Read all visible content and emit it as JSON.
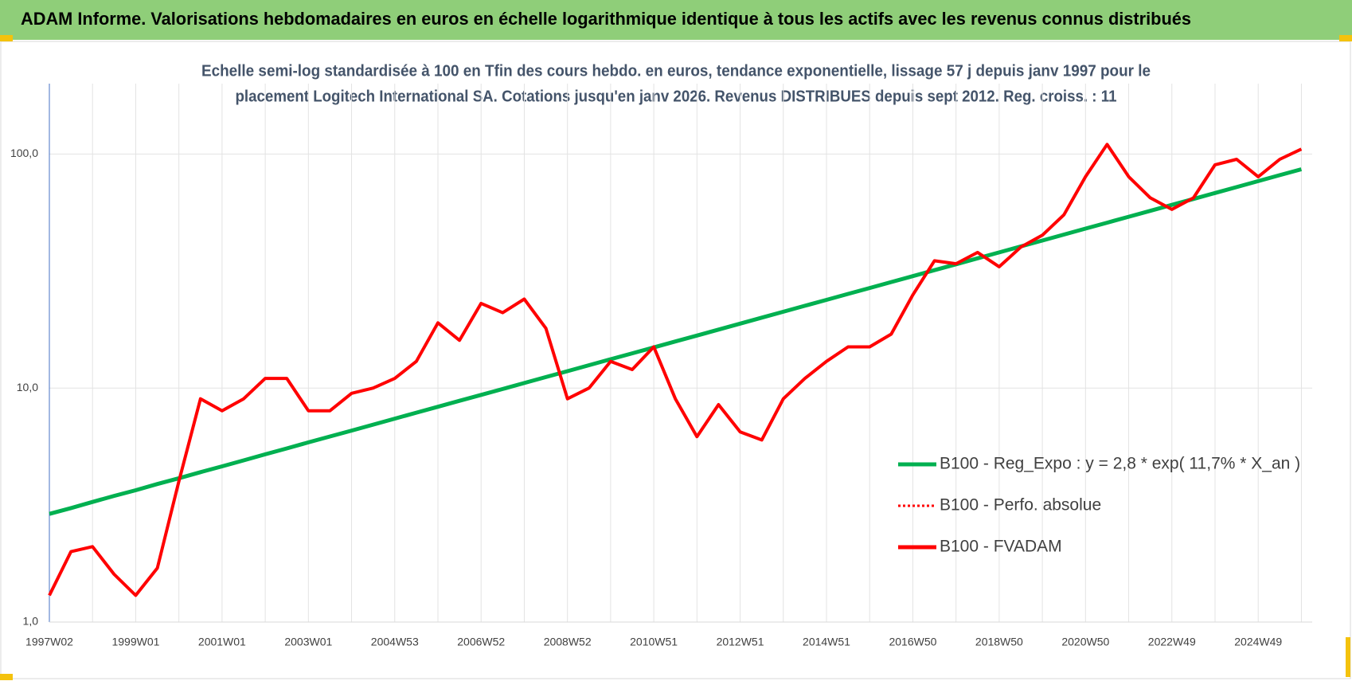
{
  "header": {
    "title": "ADAM Informe. Valorisations hebdomadaires en euros en échelle logarithmique identique à tous les actifs avec les revenus connus distribués"
  },
  "chart_data": {
    "type": "line",
    "title": [
      "Echelle semi-log standardisée à 100 en Tfin des cours hebdo. en euros, tendance exponentielle, lissage 57 j depuis janv 1997 pour le",
      "placement Logitech International SA. Cotations jusqu'en janv 2026. Revenus DISTRIBUES depuis sept 2012. Reg. croiss. : 11"
    ],
    "categories": [
      "1997W02",
      null,
      null,
      null,
      "1999W01",
      null,
      null,
      null,
      "2001W01",
      null,
      null,
      null,
      "2003W01",
      null,
      null,
      null,
      "2004W53",
      null,
      null,
      null,
      "2006W52",
      null,
      null,
      null,
      "2008W52",
      null,
      null,
      null,
      "2010W51",
      null,
      null,
      null,
      "2012W51",
      null,
      null,
      null,
      "2014W51",
      null,
      null,
      null,
      "2016W50",
      null,
      null,
      null,
      "2018W50",
      null,
      null,
      null,
      "2020W50",
      null,
      null,
      null,
      "2022W49",
      null,
      null,
      null,
      "2024W49",
      null,
      null
    ],
    "series": [
      {
        "name": "B100 - Reg_Expo : y = 2,8 * exp( 11,7% *  X_an )",
        "color": "#00b050",
        "dash": "solid",
        "values": [
          2.9,
          3.07,
          3.26,
          3.46,
          3.66,
          3.89,
          4.12,
          4.37,
          4.63,
          4.91,
          5.21,
          5.52,
          5.86,
          6.21,
          6.58,
          6.98,
          7.4,
          7.85,
          8.32,
          8.82,
          9.35,
          9.91,
          10.51,
          11.14,
          11.81,
          12.52,
          13.28,
          14.08,
          14.92,
          15.82,
          16.77,
          17.78,
          18.85,
          19.99,
          21.19,
          22.47,
          23.82,
          25.25,
          26.77,
          28.38,
          30.09,
          31.9,
          33.82,
          35.85,
          38.01,
          40.3,
          42.72,
          45.29,
          48.02,
          50.91,
          53.97,
          57.22,
          60.66,
          64.31,
          68.18,
          72.28,
          76.63,
          81.24,
          86.13
        ]
      },
      {
        "name": "B100 - Perfo. absolue",
        "color": "#ff0000",
        "dash": "dotted",
        "values": [
          null,
          null,
          null,
          null,
          null,
          null,
          null,
          null,
          null,
          null,
          null,
          null,
          null,
          null,
          null,
          null,
          null,
          null,
          null,
          null,
          null,
          null,
          null,
          null,
          null,
          null,
          null,
          null,
          null,
          null,
          null,
          null,
          null,
          null,
          null,
          null,
          null,
          null,
          null,
          null,
          null,
          null,
          null,
          null,
          null,
          null,
          null,
          null,
          null,
          null,
          null,
          null,
          null,
          null,
          null,
          null,
          null,
          null,
          null
        ]
      },
      {
        "name": "B100 - FVADAM",
        "color": "#ff0000",
        "dash": "solid",
        "values": [
          1.3,
          2.0,
          2.1,
          1.6,
          1.3,
          1.7,
          4.0,
          9.0,
          8.0,
          9.0,
          11,
          11,
          8,
          8,
          9.5,
          10,
          11,
          13,
          19,
          16,
          23,
          21,
          24,
          18,
          9,
          10,
          13,
          12,
          15,
          9,
          6.2,
          8.5,
          6.5,
          6.0,
          9,
          11,
          13,
          15,
          15,
          17,
          25,
          35,
          34,
          38,
          33,
          40,
          45,
          55,
          80,
          110,
          80,
          65,
          58,
          65,
          90,
          95,
          80,
          95,
          105
        ]
      }
    ],
    "ylim": [
      1,
      200
    ],
    "log_y": true,
    "yticks": [
      {
        "value": 1,
        "label": "1,0"
      },
      {
        "value": 10,
        "label": "10,0"
      },
      {
        "value": 100,
        "label": "100,0"
      }
    ],
    "grid": true,
    "legend": "lower right"
  }
}
